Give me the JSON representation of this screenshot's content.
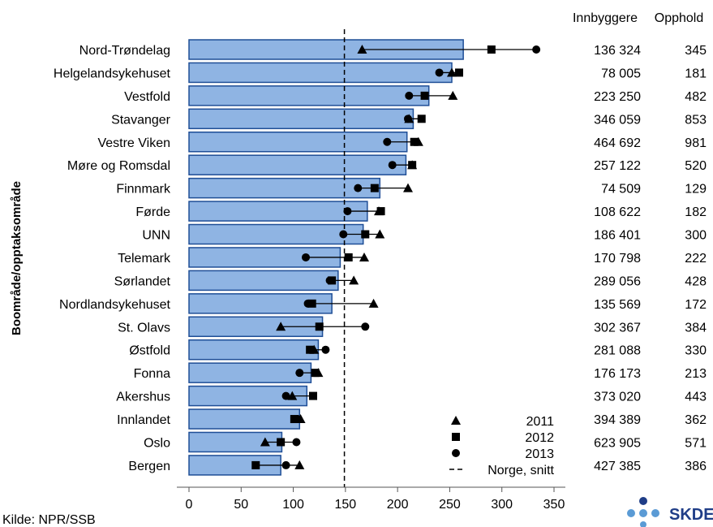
{
  "chart_data": {
    "type": "bar",
    "ylabel": "Boområde/opptaksområde",
    "xlim": [
      0,
      350
    ],
    "xticks": [
      0,
      50,
      100,
      150,
      200,
      250,
      300,
      350
    ],
    "reference_line": {
      "name": "Norge, snitt",
      "value": 149
    },
    "categories": [
      "Nord-Trøndelag",
      "Helgelandsykehuset",
      "Vestfold",
      "Stavanger",
      "Vestre Viken",
      "Møre og Romsdal",
      "Finnmark",
      "Førde",
      "UNN",
      "Telemark",
      "Sørlandet",
      "Nordlandsykehuset",
      "St. Olavs",
      "Østfold",
      "Fonna",
      "Akershus",
      "Innlandet",
      "Oslo",
      "Bergen"
    ],
    "bar_values": [
      263,
      252,
      230,
      215,
      209,
      208,
      183,
      171,
      167,
      145,
      143,
      137,
      128,
      124,
      117,
      113,
      106,
      89,
      88
    ],
    "series": [
      {
        "name": "2011",
        "marker": "triangle",
        "values": [
          166,
          252,
          253,
          211,
          220,
          214,
          210,
          182,
          183,
          168,
          158,
          177,
          88,
          120,
          124,
          99,
          107,
          73,
          106
        ]
      },
      {
        "name": "2012",
        "marker": "square",
        "values": [
          290,
          259,
          226,
          223,
          216,
          214,
          178,
          184,
          169,
          153,
          137,
          118,
          125,
          116,
          121,
          119,
          101,
          88,
          64
        ]
      },
      {
        "name": "2013",
        "marker": "circle",
        "values": [
          333,
          240,
          211,
          210,
          190,
          195,
          162,
          152,
          148,
          112,
          135,
          114,
          169,
          131,
          106,
          93,
          104,
          103,
          93
        ]
      }
    ],
    "table": {
      "headers": [
        "Innbyggere",
        "Opphold"
      ],
      "innbyggere": [
        "136 324",
        "78 005",
        "223 250",
        "346 059",
        "464 692",
        "257 122",
        "74 509",
        "108 622",
        "186 401",
        "170 798",
        "289 056",
        "135 569",
        "302 367",
        "281 088",
        "176 173",
        "373 020",
        "394 389",
        "623 905",
        "427 385"
      ],
      "opphold": [
        "345",
        "181",
        "482",
        "853",
        "981",
        "520",
        "129",
        "182",
        "300",
        "222",
        "428",
        "172",
        "384",
        "330",
        "213",
        "443",
        "362",
        "571",
        "386"
      ]
    },
    "legend": {
      "placement": "bottom-right",
      "entries": [
        "2011",
        "2012",
        "2013",
        "Norge, snitt"
      ]
    },
    "colors": {
      "bar_fill": "#8fb4e3",
      "bar_stroke": "#1f4e96",
      "marker": "#000000"
    }
  },
  "source": "Kilde: NPR/SSB",
  "logo_text": "SKDE"
}
